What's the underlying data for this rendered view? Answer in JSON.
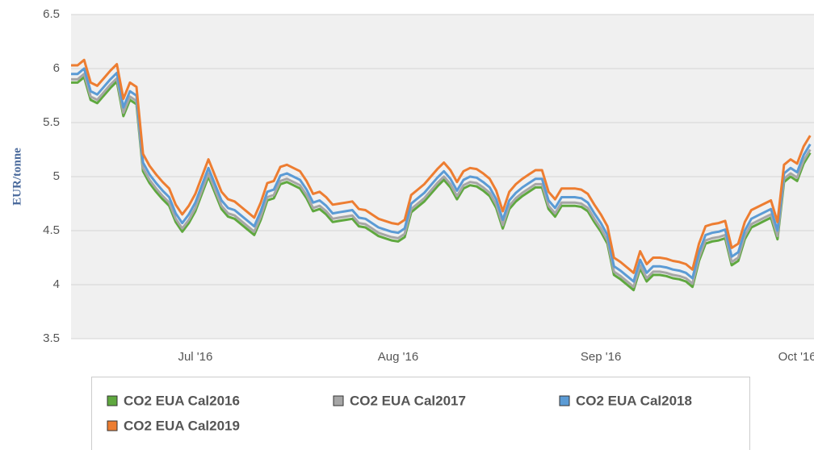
{
  "chart_data": {
    "type": "line",
    "y_label": "EUR/tonne",
    "categories": [
      null,
      null,
      null,
      null,
      null,
      null,
      null,
      null,
      null,
      null,
      null,
      null,
      null,
      null,
      null,
      null,
      null,
      null,
      null,
      "Jul '16",
      null,
      null,
      null,
      null,
      null,
      null,
      null,
      null,
      null,
      null,
      null,
      null,
      null,
      null,
      null,
      null,
      null,
      null,
      null,
      null,
      null,
      null,
      null,
      null,
      null,
      null,
      null,
      null,
      null,
      null,
      "Aug '16",
      null,
      null,
      null,
      null,
      null,
      null,
      null,
      null,
      null,
      null,
      null,
      null,
      null,
      null,
      null,
      null,
      null,
      null,
      null,
      null,
      null,
      null,
      null,
      null,
      null,
      null,
      null,
      null,
      null,
      null,
      "Sep '16",
      null,
      null,
      null,
      null,
      null,
      null,
      null,
      null,
      null,
      null,
      null,
      null,
      null,
      null,
      null,
      null,
      null,
      null,
      null,
      null,
      null,
      null,
      null,
      null,
      null,
      null,
      null,
      null,
      null,
      "Oct '16",
      null,
      null
    ],
    "series": [
      {
        "name": "CO2 EUA Cal2016",
        "color": "#5fa83f",
        "values": [
          5.87,
          5.87,
          5.92,
          5.71,
          5.68,
          5.75,
          5.82,
          5.88,
          5.56,
          5.71,
          5.67,
          5.05,
          4.94,
          4.86,
          4.79,
          4.73,
          4.58,
          4.49,
          4.57,
          4.68,
          4.84,
          5.0,
          4.85,
          4.7,
          4.63,
          4.61,
          4.56,
          4.51,
          4.46,
          4.6,
          4.78,
          4.8,
          4.93,
          4.95,
          4.92,
          4.89,
          4.8,
          4.68,
          4.7,
          4.65,
          4.58,
          4.59,
          4.6,
          4.61,
          4.54,
          4.53,
          4.49,
          4.45,
          4.43,
          4.41,
          4.4,
          4.44,
          4.67,
          4.72,
          4.77,
          4.84,
          4.91,
          4.97,
          4.9,
          4.79,
          4.89,
          4.92,
          4.91,
          4.87,
          4.82,
          4.71,
          4.52,
          4.7,
          4.77,
          4.82,
          4.86,
          4.9,
          4.9,
          4.7,
          4.63,
          4.73,
          4.73,
          4.73,
          4.72,
          4.68,
          4.58,
          4.49,
          4.38,
          4.09,
          4.05,
          4.0,
          3.95,
          4.15,
          4.03,
          4.09,
          4.09,
          4.08,
          4.06,
          4.05,
          4.03,
          3.98,
          4.22,
          4.38,
          4.4,
          4.41,
          4.43,
          4.18,
          4.22,
          4.42,
          4.53,
          4.56,
          4.59,
          4.62,
          4.42,
          4.95,
          5.0,
          4.96,
          5.12,
          5.22
        ]
      },
      {
        "name": "CO2 EUA Cal2017",
        "color": "#a6a6a6",
        "values": [
          5.9,
          5.9,
          5.95,
          5.74,
          5.71,
          5.78,
          5.85,
          5.91,
          5.59,
          5.74,
          5.7,
          5.08,
          4.97,
          4.89,
          4.82,
          4.76,
          4.61,
          4.52,
          4.6,
          4.71,
          4.87,
          5.03,
          4.88,
          4.73,
          4.66,
          4.64,
          4.59,
          4.54,
          4.49,
          4.63,
          4.81,
          4.83,
          4.96,
          4.98,
          4.95,
          4.92,
          4.83,
          4.71,
          4.73,
          4.68,
          4.61,
          4.62,
          4.63,
          4.64,
          4.57,
          4.56,
          4.52,
          4.48,
          4.46,
          4.44,
          4.43,
          4.47,
          4.7,
          4.75,
          4.8,
          4.87,
          4.94,
          5.0,
          4.93,
          4.82,
          4.92,
          4.95,
          4.94,
          4.9,
          4.85,
          4.74,
          4.55,
          4.73,
          4.8,
          4.85,
          4.89,
          4.93,
          4.93,
          4.73,
          4.66,
          4.76,
          4.76,
          4.76,
          4.75,
          4.71,
          4.61,
          4.52,
          4.41,
          4.12,
          4.08,
          4.03,
          3.98,
          4.18,
          4.06,
          4.12,
          4.12,
          4.11,
          4.09,
          4.08,
          4.06,
          4.01,
          4.25,
          4.41,
          4.43,
          4.44,
          4.46,
          4.21,
          4.25,
          4.45,
          4.56,
          4.59,
          4.62,
          4.65,
          4.45,
          4.98,
          5.03,
          4.99,
          5.15,
          5.25
        ]
      },
      {
        "name": "CO2 EUA Cal2018",
        "color": "#5b9bd5",
        "values": [
          5.95,
          5.95,
          6.0,
          5.79,
          5.76,
          5.83,
          5.9,
          5.96,
          5.64,
          5.79,
          5.75,
          5.13,
          5.02,
          4.94,
          4.87,
          4.81,
          4.66,
          4.57,
          4.65,
          4.76,
          4.92,
          5.08,
          4.93,
          4.78,
          4.71,
          4.69,
          4.64,
          4.59,
          4.54,
          4.68,
          4.86,
          4.88,
          5.01,
          5.03,
          5.0,
          4.97,
          4.88,
          4.76,
          4.78,
          4.73,
          4.66,
          4.67,
          4.68,
          4.69,
          4.62,
          4.61,
          4.57,
          4.53,
          4.51,
          4.49,
          4.48,
          4.52,
          4.75,
          4.8,
          4.85,
          4.92,
          4.99,
          5.05,
          4.98,
          4.87,
          4.97,
          5.0,
          4.99,
          4.95,
          4.9,
          4.79,
          4.6,
          4.78,
          4.85,
          4.9,
          4.94,
          4.98,
          4.98,
          4.78,
          4.71,
          4.81,
          4.81,
          4.81,
          4.8,
          4.76,
          4.66,
          4.57,
          4.46,
          4.17,
          4.13,
          4.08,
          4.03,
          4.23,
          4.11,
          4.17,
          4.17,
          4.16,
          4.14,
          4.13,
          4.11,
          4.06,
          4.3,
          4.46,
          4.48,
          4.49,
          4.51,
          4.26,
          4.3,
          4.5,
          4.61,
          4.64,
          4.67,
          4.7,
          4.5,
          5.03,
          5.08,
          5.04,
          5.2,
          5.3
        ]
      },
      {
        "name": "CO2 EUA Cal2019",
        "color": "#ed7d31",
        "values": [
          6.03,
          6.03,
          6.08,
          5.87,
          5.84,
          5.91,
          5.98,
          6.04,
          5.72,
          5.87,
          5.83,
          5.21,
          5.1,
          5.02,
          4.95,
          4.89,
          4.74,
          4.65,
          4.73,
          4.84,
          5.0,
          5.16,
          5.01,
          4.86,
          4.79,
          4.77,
          4.72,
          4.67,
          4.62,
          4.76,
          4.94,
          4.96,
          5.09,
          5.11,
          5.08,
          5.05,
          4.96,
          4.84,
          4.86,
          4.81,
          4.74,
          4.75,
          4.76,
          4.77,
          4.7,
          4.69,
          4.65,
          4.61,
          4.59,
          4.57,
          4.56,
          4.6,
          4.83,
          4.88,
          4.93,
          5.0,
          5.07,
          5.13,
          5.06,
          4.95,
          5.05,
          5.08,
          5.07,
          5.03,
          4.98,
          4.87,
          4.68,
          4.86,
          4.93,
          4.98,
          5.02,
          5.06,
          5.06,
          4.86,
          4.79,
          4.89,
          4.89,
          4.89,
          4.88,
          4.84,
          4.74,
          4.65,
          4.54,
          4.25,
          4.21,
          4.16,
          4.11,
          4.31,
          4.19,
          4.25,
          4.25,
          4.24,
          4.22,
          4.21,
          4.19,
          4.14,
          4.38,
          4.54,
          4.56,
          4.57,
          4.59,
          4.34,
          4.38,
          4.58,
          4.69,
          4.72,
          4.75,
          4.78,
          4.58,
          5.11,
          5.16,
          5.12,
          5.28,
          5.38
        ]
      }
    ],
    "ylim": [
      3.5,
      6.5
    ],
    "yticks": [
      3.5,
      4,
      4.5,
      5,
      5.5,
      6,
      6.5
    ],
    "grid": true,
    "legend": "bottom"
  }
}
